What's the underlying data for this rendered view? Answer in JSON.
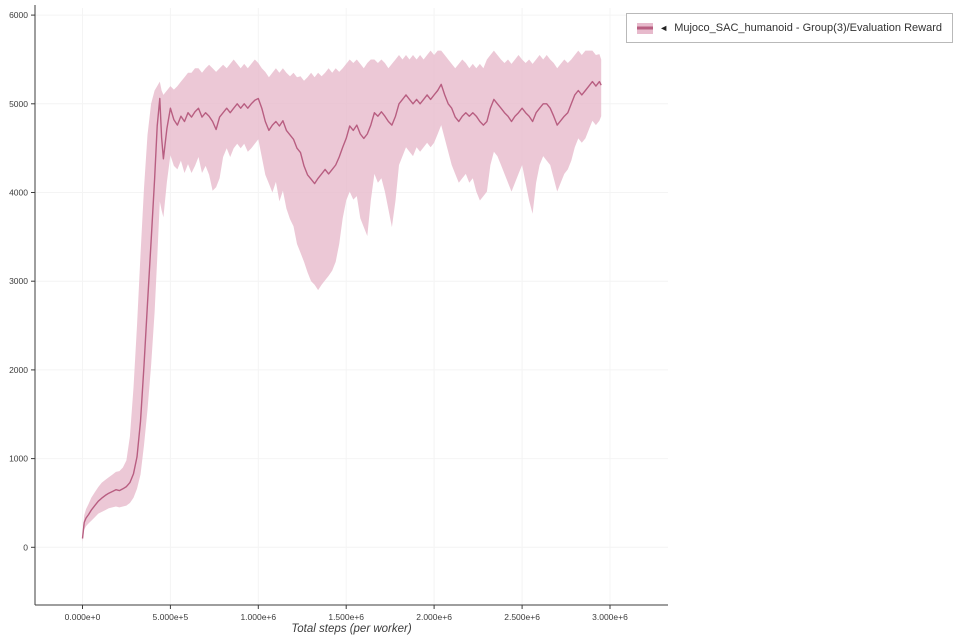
{
  "legend": {
    "collapse_icon": "◄",
    "series_label": "Mujoco_SAC_humanoid - Group(3)/Evaluation Reward"
  },
  "colors": {
    "line": "#b85e81",
    "band": "#e7bacc",
    "axis": "#3c3c3c",
    "text": "#3c3c3c"
  },
  "chart_data": {
    "type": "line",
    "title": "",
    "xlabel": "Total steps (per worker)",
    "ylabel": "",
    "legend_position": "top-right",
    "grid": false,
    "xlim": [
      -270000,
      3330000
    ],
    "ylim": [
      -650,
      6080
    ],
    "x_ticks": [
      {
        "v": 0,
        "label": "0.000e+0"
      },
      {
        "v": 500000,
        "label": "5.000e+5"
      },
      {
        "v": 1000000,
        "label": "1.000e+6"
      },
      {
        "v": 1500000,
        "label": "1.500e+6"
      },
      {
        "v": 2000000,
        "label": "2.000e+6"
      },
      {
        "v": 2500000,
        "label": "2.500e+6"
      },
      {
        "v": 3000000,
        "label": "3.000e+6"
      }
    ],
    "y_ticks": [
      {
        "v": 0,
        "label": "0"
      },
      {
        "v": 1000,
        "label": "1000"
      },
      {
        "v": 2000,
        "label": "2000"
      },
      {
        "v": 3000,
        "label": "3000"
      },
      {
        "v": 4000,
        "label": "4000"
      },
      {
        "v": 5000,
        "label": "5000"
      },
      {
        "v": 6000,
        "label": "6000"
      }
    ],
    "series": [
      {
        "name": "Mujoco_SAC_humanoid - Group(3)/Evaluation Reward",
        "point_format": [
          "x",
          "mean",
          "lower",
          "upper"
        ],
        "points": [
          [
            0,
            100,
            60,
            150
          ],
          [
            10000,
            280,
            200,
            360
          ],
          [
            20000,
            330,
            240,
            430
          ],
          [
            35000,
            370,
            270,
            490
          ],
          [
            50000,
            420,
            300,
            560
          ],
          [
            70000,
            470,
            340,
            620
          ],
          [
            90000,
            520,
            380,
            680
          ],
          [
            110000,
            555,
            400,
            730
          ],
          [
            130000,
            585,
            420,
            760
          ],
          [
            150000,
            610,
            440,
            790
          ],
          [
            170000,
            630,
            450,
            820
          ],
          [
            190000,
            650,
            460,
            850
          ],
          [
            210000,
            640,
            450,
            860
          ],
          [
            230000,
            660,
            460,
            900
          ],
          [
            250000,
            685,
            470,
            980
          ],
          [
            270000,
            730,
            500,
            1250
          ],
          [
            290000,
            830,
            560,
            1800
          ],
          [
            310000,
            1020,
            660,
            2500
          ],
          [
            330000,
            1420,
            820,
            3300
          ],
          [
            350000,
            2050,
            1150,
            4050
          ],
          [
            370000,
            2750,
            1550,
            4650
          ],
          [
            390000,
            3450,
            2050,
            5000
          ],
          [
            410000,
            4150,
            2650,
            5150
          ],
          [
            425000,
            4750,
            3250,
            5200
          ],
          [
            440000,
            5060,
            3900,
            5250
          ],
          [
            450000,
            4620,
            3800,
            5150
          ],
          [
            460000,
            4380,
            3720,
            5100
          ],
          [
            480000,
            4720,
            4120,
            5150
          ],
          [
            500000,
            4950,
            4420,
            5200
          ],
          [
            520000,
            4820,
            4300,
            5160
          ],
          [
            540000,
            4760,
            4260,
            5200
          ],
          [
            560000,
            4860,
            4360,
            5250
          ],
          [
            580000,
            4800,
            4220,
            5300
          ],
          [
            600000,
            4900,
            4320,
            5350
          ],
          [
            620000,
            4850,
            4220,
            5350
          ],
          [
            640000,
            4910,
            4300,
            5400
          ],
          [
            660000,
            4950,
            4400,
            5400
          ],
          [
            680000,
            4850,
            4220,
            5350
          ],
          [
            700000,
            4900,
            4300,
            5400
          ],
          [
            720000,
            4860,
            4200,
            5440
          ],
          [
            740000,
            4800,
            4020,
            5400
          ],
          [
            760000,
            4710,
            4060,
            5360
          ],
          [
            780000,
            4850,
            4160,
            5400
          ],
          [
            800000,
            4900,
            4400,
            5440
          ],
          [
            820000,
            4950,
            4500,
            5400
          ],
          [
            840000,
            4900,
            4400,
            5450
          ],
          [
            860000,
            4950,
            4500,
            5500
          ],
          [
            880000,
            5000,
            4550,
            5450
          ],
          [
            900000,
            4950,
            4500,
            5400
          ],
          [
            920000,
            5000,
            4550,
            5450
          ],
          [
            940000,
            4950,
            4460,
            5400
          ],
          [
            960000,
            5000,
            4500,
            5450
          ],
          [
            980000,
            5040,
            4550,
            5500
          ],
          [
            1000000,
            5060,
            4600,
            5460
          ],
          [
            1020000,
            4950,
            4400,
            5400
          ],
          [
            1040000,
            4800,
            4200,
            5360
          ],
          [
            1060000,
            4700,
            4100,
            5300
          ],
          [
            1080000,
            4760,
            4000,
            5350
          ],
          [
            1100000,
            4800,
            4120,
            5400
          ],
          [
            1120000,
            4750,
            3900,
            5350
          ],
          [
            1140000,
            4810,
            4020,
            5400
          ],
          [
            1160000,
            4700,
            3820,
            5350
          ],
          [
            1180000,
            4650,
            3700,
            5310
          ],
          [
            1200000,
            4600,
            3620,
            5350
          ],
          [
            1220000,
            4500,
            3420,
            5300
          ],
          [
            1240000,
            4450,
            3320,
            5310
          ],
          [
            1260000,
            4300,
            3220,
            5260
          ],
          [
            1280000,
            4200,
            3100,
            5300
          ],
          [
            1300000,
            4150,
            3000,
            5350
          ],
          [
            1320000,
            4100,
            2960,
            5300
          ],
          [
            1340000,
            4160,
            2900,
            5350
          ],
          [
            1360000,
            4210,
            2960,
            5310
          ],
          [
            1380000,
            4260,
            3010,
            5350
          ],
          [
            1400000,
            4210,
            3060,
            5400
          ],
          [
            1420000,
            4260,
            3120,
            5350
          ],
          [
            1440000,
            4310,
            3220,
            5400
          ],
          [
            1460000,
            4400,
            3420,
            5360
          ],
          [
            1480000,
            4510,
            3710,
            5400
          ],
          [
            1500000,
            4610,
            3910,
            5450
          ],
          [
            1520000,
            4750,
            4010,
            5500
          ],
          [
            1540000,
            4700,
            3920,
            5460
          ],
          [
            1560000,
            4760,
            3960,
            5500
          ],
          [
            1580000,
            4660,
            3710,
            5450
          ],
          [
            1600000,
            4610,
            3610,
            5400
          ],
          [
            1620000,
            4660,
            3510,
            5460
          ],
          [
            1640000,
            4760,
            3910,
            5500
          ],
          [
            1660000,
            4900,
            4210,
            5500
          ],
          [
            1680000,
            4860,
            4110,
            5460
          ],
          [
            1700000,
            4910,
            4160,
            5500
          ],
          [
            1720000,
            4860,
            4010,
            5460
          ],
          [
            1740000,
            4800,
            3810,
            5400
          ],
          [
            1760000,
            4760,
            3610,
            5450
          ],
          [
            1780000,
            4860,
            3910,
            5500
          ],
          [
            1800000,
            5000,
            4310,
            5550
          ],
          [
            1820000,
            5050,
            4410,
            5500
          ],
          [
            1840000,
            5100,
            4510,
            5550
          ],
          [
            1860000,
            5050,
            4460,
            5500
          ],
          [
            1880000,
            5000,
            4410,
            5550
          ],
          [
            1900000,
            5050,
            4510,
            5500
          ],
          [
            1920000,
            5000,
            4460,
            5550
          ],
          [
            1940000,
            5050,
            4510,
            5500
          ],
          [
            1960000,
            5100,
            4560,
            5550
          ],
          [
            1980000,
            5050,
            4510,
            5600
          ],
          [
            2000000,
            5100,
            4560,
            5550
          ],
          [
            2020000,
            5150,
            4660,
            5600
          ],
          [
            2040000,
            5220,
            4760,
            5600
          ],
          [
            2060000,
            5100,
            4610,
            5550
          ],
          [
            2080000,
            5000,
            4460,
            5500
          ],
          [
            2100000,
            4950,
            4310,
            5450
          ],
          [
            2120000,
            4850,
            4210,
            5400
          ],
          [
            2140000,
            4800,
            4110,
            5450
          ],
          [
            2160000,
            4860,
            4160,
            5500
          ],
          [
            2180000,
            4900,
            4210,
            5460
          ],
          [
            2200000,
            4860,
            4110,
            5400
          ],
          [
            2220000,
            4900,
            4160,
            5450
          ],
          [
            2240000,
            4860,
            4010,
            5400
          ],
          [
            2260000,
            4800,
            3910,
            5450
          ],
          [
            2280000,
            4760,
            3960,
            5400
          ],
          [
            2300000,
            4800,
            4010,
            5500
          ],
          [
            2320000,
            4950,
            4310,
            5550
          ],
          [
            2340000,
            5050,
            4460,
            5600
          ],
          [
            2360000,
            5000,
            4410,
            5550
          ],
          [
            2380000,
            4950,
            4310,
            5500
          ],
          [
            2400000,
            4900,
            4210,
            5460
          ],
          [
            2420000,
            4860,
            4110,
            5500
          ],
          [
            2440000,
            4800,
            4010,
            5450
          ],
          [
            2460000,
            4860,
            4110,
            5500
          ],
          [
            2480000,
            4900,
            4210,
            5550
          ],
          [
            2500000,
            4950,
            4310,
            5500
          ],
          [
            2520000,
            4900,
            4110,
            5460
          ],
          [
            2540000,
            4860,
            3910,
            5500
          ],
          [
            2560000,
            4800,
            3760,
            5450
          ],
          [
            2580000,
            4900,
            4110,
            5500
          ],
          [
            2600000,
            4950,
            4310,
            5550
          ],
          [
            2620000,
            5000,
            4410,
            5500
          ],
          [
            2640000,
            5000,
            4360,
            5550
          ],
          [
            2660000,
            4950,
            4310,
            5500
          ],
          [
            2680000,
            4860,
            4160,
            5460
          ],
          [
            2700000,
            4760,
            4010,
            5400
          ],
          [
            2720000,
            4810,
            4110,
            5450
          ],
          [
            2740000,
            4860,
            4210,
            5500
          ],
          [
            2760000,
            4900,
            4260,
            5460
          ],
          [
            2780000,
            5000,
            4360,
            5500
          ],
          [
            2800000,
            5100,
            4510,
            5550
          ],
          [
            2820000,
            5150,
            4610,
            5600
          ],
          [
            2840000,
            5100,
            4560,
            5550
          ],
          [
            2860000,
            5150,
            4610,
            5600
          ],
          [
            2880000,
            5200,
            4710,
            5600
          ],
          [
            2900000,
            5250,
            4810,
            5600
          ],
          [
            2920000,
            5200,
            4760,
            5550
          ],
          [
            2940000,
            5250,
            4810,
            5560
          ],
          [
            2950000,
            5210,
            4860,
            5500
          ]
        ]
      }
    ]
  }
}
